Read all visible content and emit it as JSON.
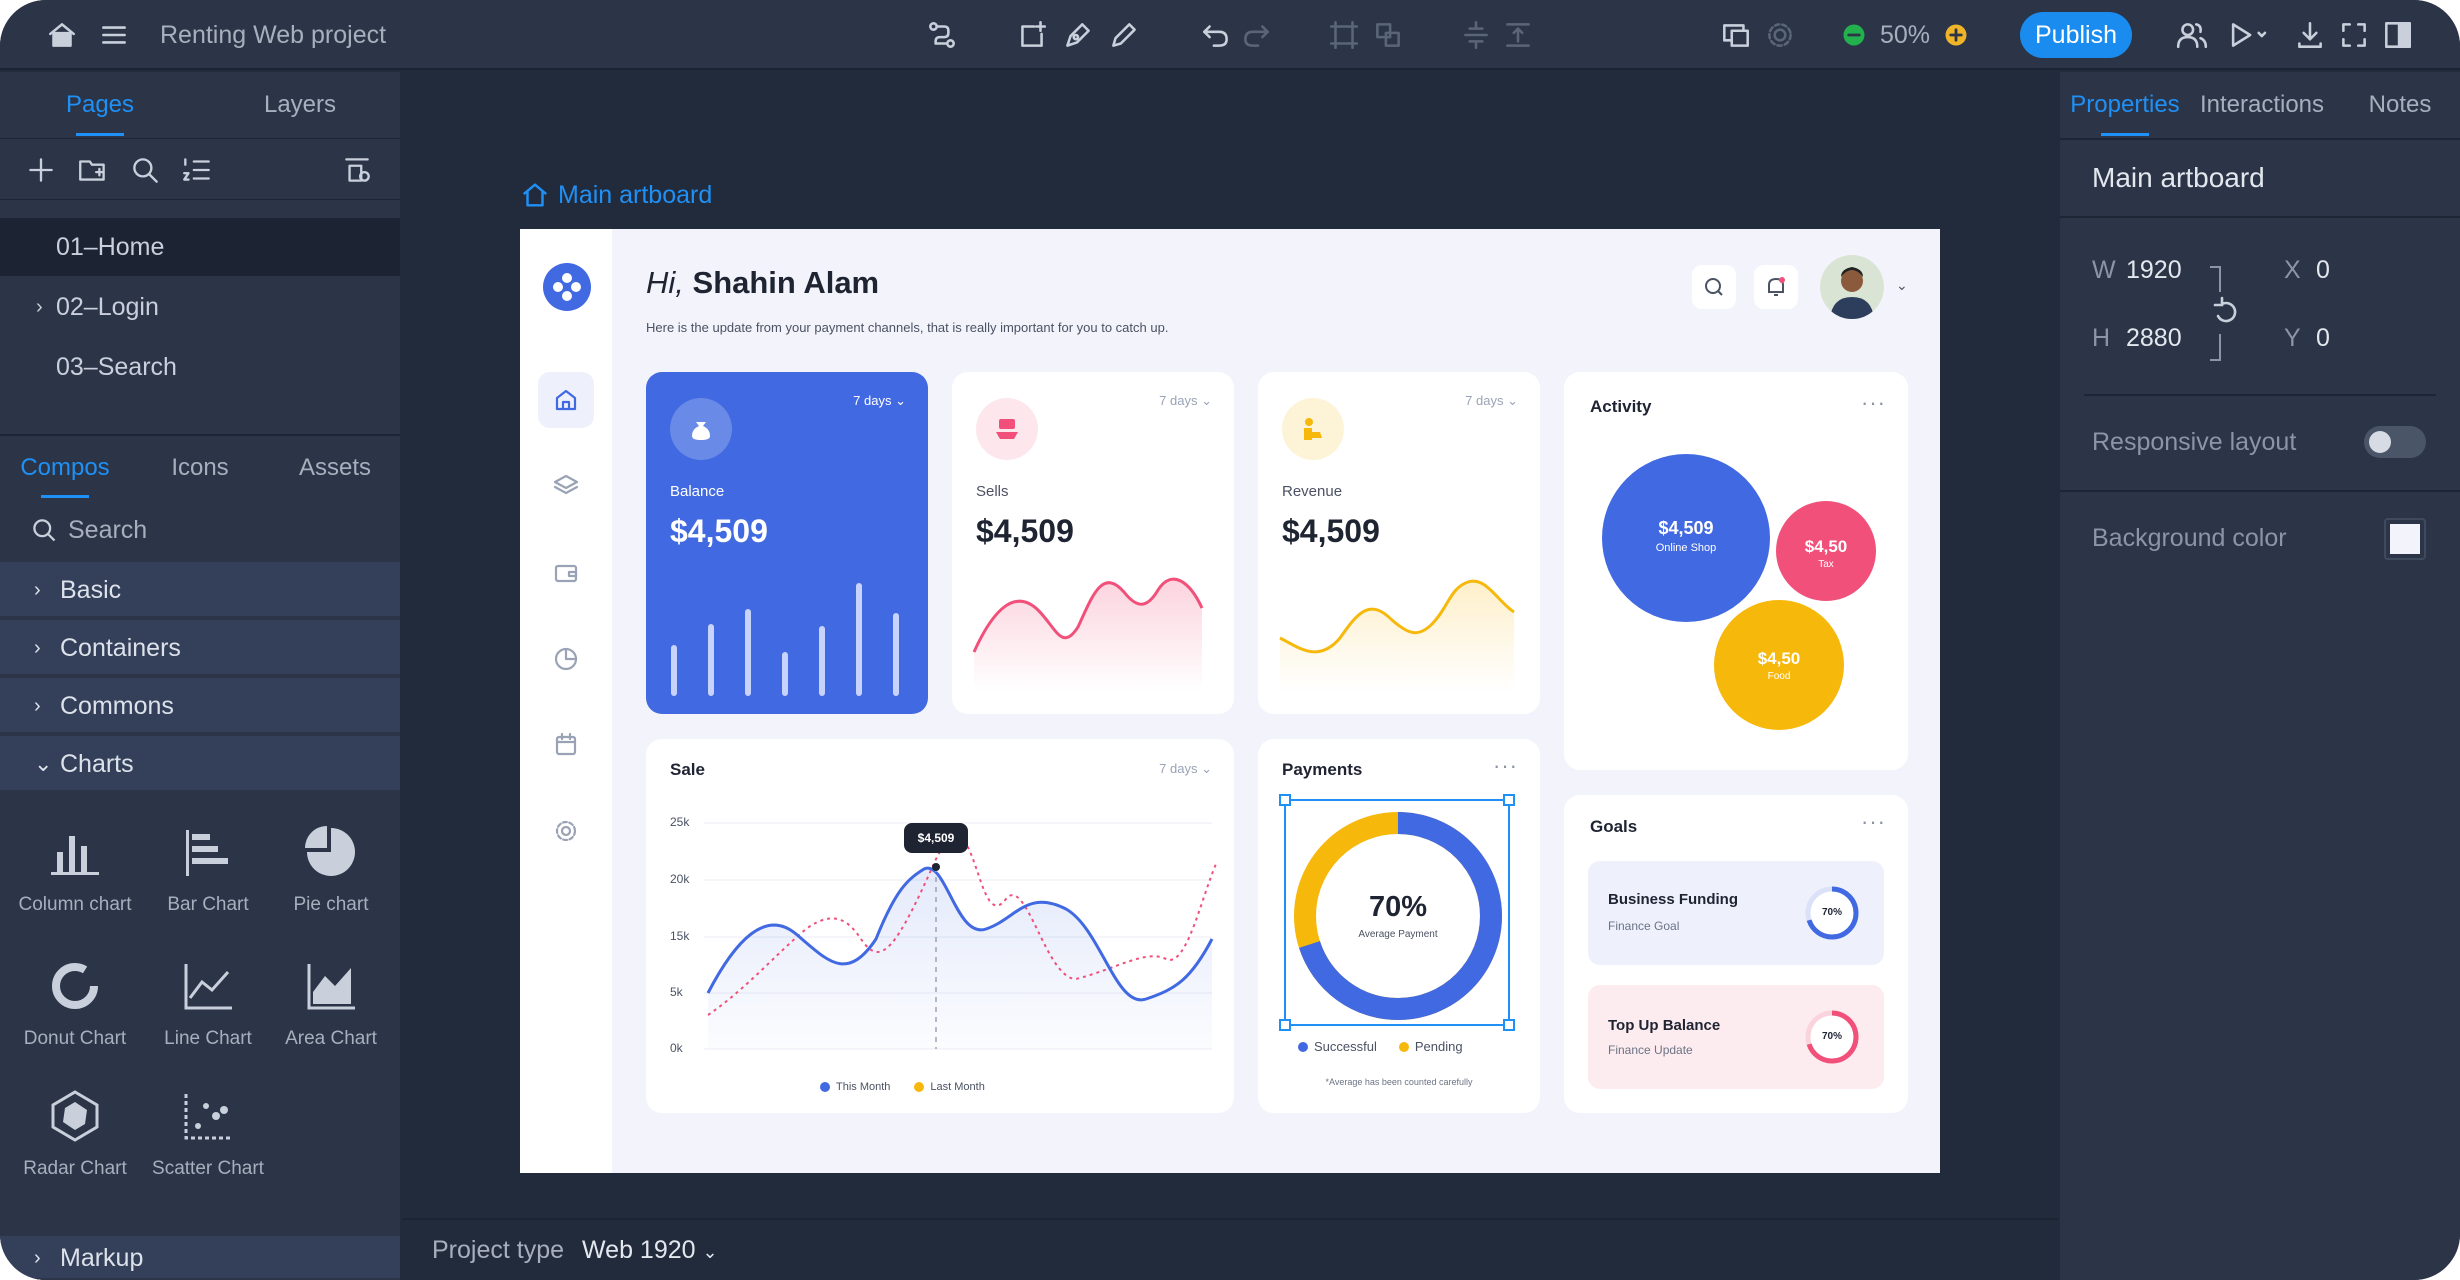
{
  "topbar": {
    "project_title": "Renting Web project",
    "zoom": "50%",
    "publish_label": "Publish"
  },
  "left_panel": {
    "tabs": [
      "Pages",
      "Layers"
    ],
    "pages": [
      "01–Home",
      "02–Login",
      "03–Search"
    ],
    "comp_tabs": [
      "Compos",
      "Icons",
      "Assets"
    ],
    "search_placeholder": "Search",
    "categories": [
      "Basic",
      "Containers",
      "Commons",
      "Charts"
    ],
    "charts": [
      "Column chart",
      "Bar Chart",
      "Pie chart",
      "Donut Chart",
      "Line Chart",
      "Area Chart",
      "Radar Chart",
      "Scatter Chart"
    ],
    "markup_label": "Markup"
  },
  "canvas": {
    "artboard_label": "Main artboard",
    "project_type_label": "Project type",
    "project_type_value": "Web 1920"
  },
  "right_panel": {
    "tabs": [
      "Properties",
      "Interactions",
      "Notes"
    ],
    "heading": "Main artboard",
    "w_label": "W",
    "w_value": "1920",
    "h_label": "H",
    "h_value": "2880",
    "x_label": "X",
    "x_value": "0",
    "y_label": "Y",
    "y_value": "0",
    "responsive_label": "Responsive layout",
    "bg_label": "Background color"
  },
  "dashboard": {
    "greeting_hi": "Hi,",
    "greeting_name": "Shahin Alam",
    "subtitle": "Here is the update from your payment channels, that is really important for you to catch up.",
    "stat_cards": [
      {
        "label": "Balance",
        "value": "$4,509",
        "range": "7 days"
      },
      {
        "label": "Sells",
        "value": "$4,509",
        "range": "7 days"
      },
      {
        "label": "Revenue",
        "value": "$4,509",
        "range": "7 days"
      }
    ],
    "activity": {
      "title": "Activity",
      "bubbles": [
        {
          "value": "$4,509",
          "label": "Online Shop",
          "color": "#4169e1"
        },
        {
          "value": "$4,50",
          "label": "Tax",
          "color": "#f0507a"
        },
        {
          "value": "$4,50",
          "label": "Food",
          "color": "#f7b80c"
        }
      ]
    },
    "sale": {
      "title": "Sale",
      "range": "7 days",
      "y_ticks": [
        "25k",
        "20k",
        "15k",
        "5k",
        "0k"
      ],
      "tooltip": "$4,509",
      "legend": [
        "This Month",
        "Last Month"
      ]
    },
    "payments": {
      "title": "Payments",
      "percent": "70%",
      "center_label": "Average Payment",
      "percent_value": 70,
      "legend": [
        "Successful",
        "Pending"
      ],
      "note": "*Average has been counted carefully"
    },
    "goals": {
      "title": "Goals",
      "items": [
        {
          "title": "Business Funding",
          "sub": "Finance Goal",
          "percent": "70%"
        },
        {
          "title": "Top Up Balance",
          "sub": "Finance Update",
          "percent": "70%"
        }
      ]
    }
  },
  "colors": {
    "accent": "#1f90f5",
    "primary": "#4169e1",
    "pink": "#f0507a",
    "yellow": "#f7b80c"
  }
}
